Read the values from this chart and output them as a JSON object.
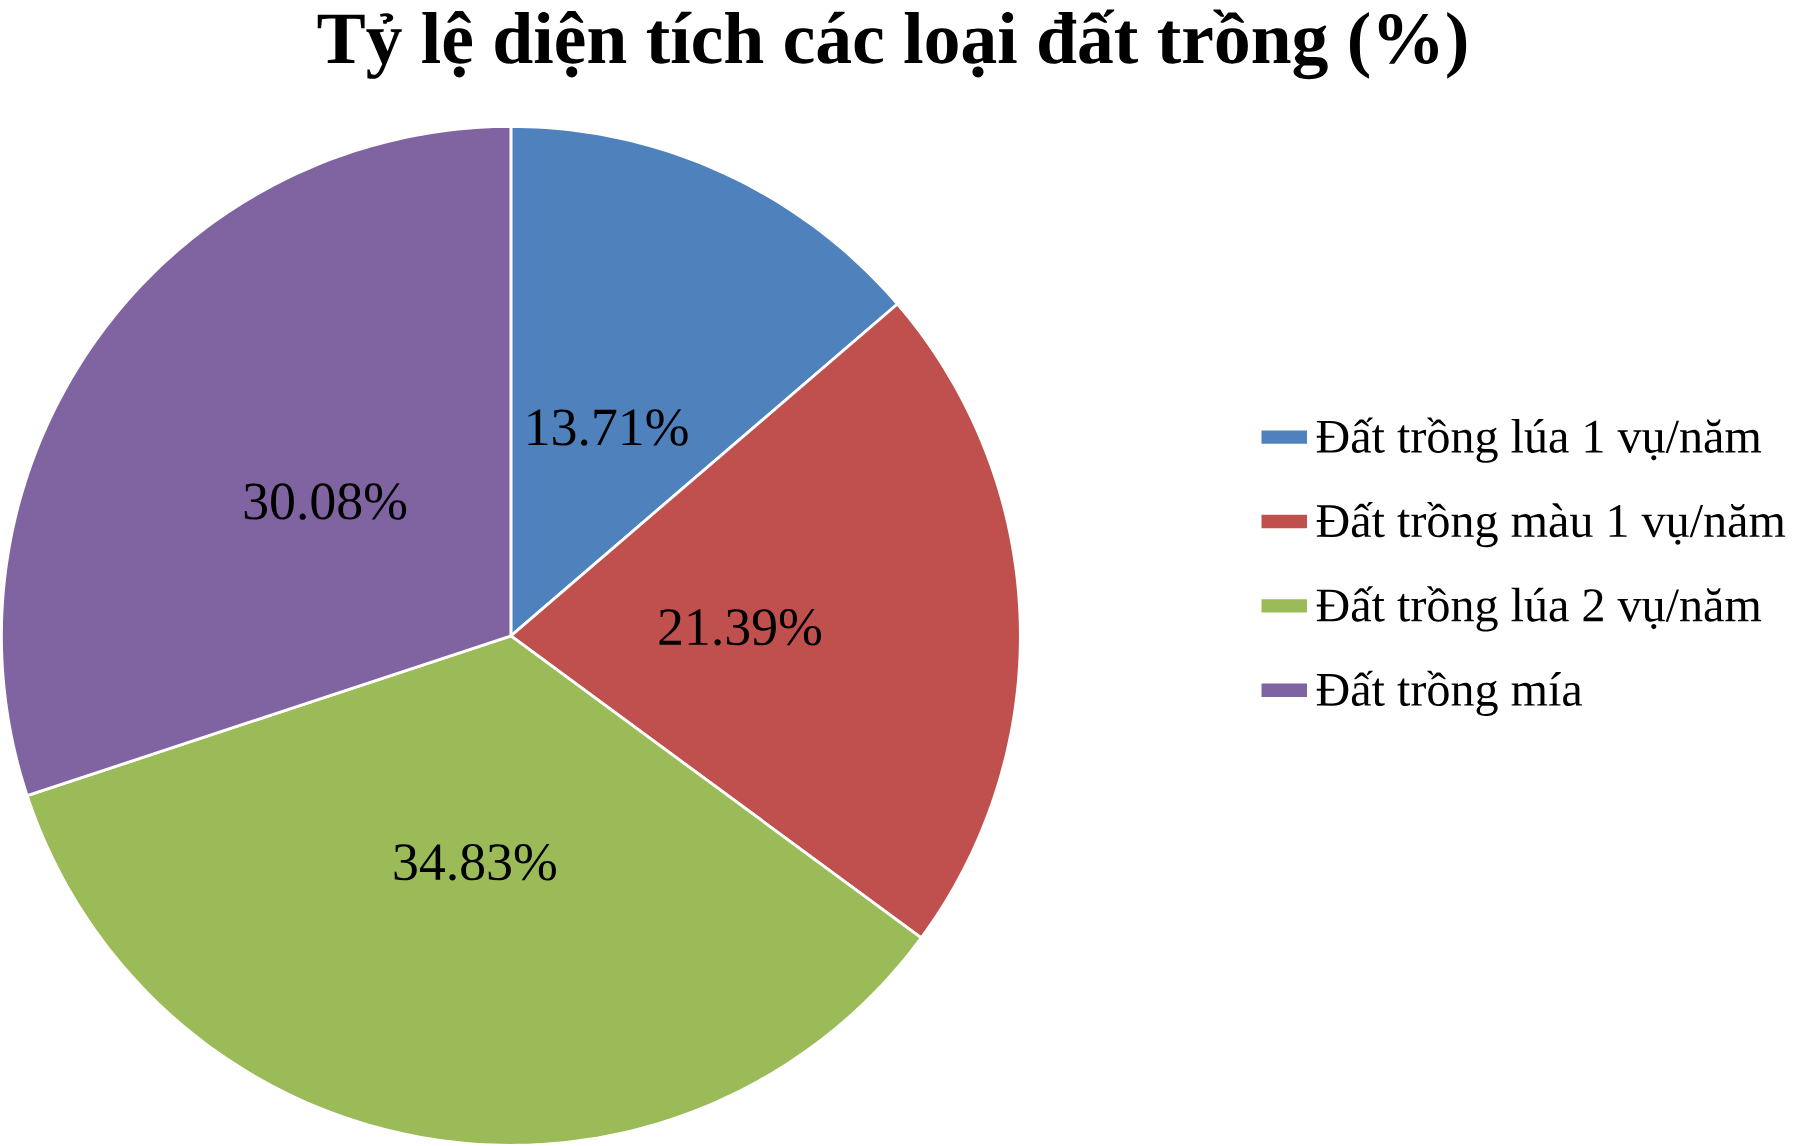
{
  "chart_data": {
    "type": "pie",
    "title": "Tỷ lệ diện tích các loại đất trồng (%)",
    "categories": [
      "Đất trồng lúa 1 vụ/năm",
      "Đất trồng màu 1 vụ/năm",
      "Đất trồng lúa 2 vụ/năm",
      "Đất trồng mía"
    ],
    "values": [
      13.71,
      21.39,
      34.83,
      30.08
    ],
    "value_labels": [
      "13.71%",
      "21.39%",
      "34.83%",
      "30.08%"
    ],
    "colors": [
      "#4f81bd",
      "#c0504d",
      "#9bbb59",
      "#8064a2"
    ],
    "legend": "right"
  }
}
